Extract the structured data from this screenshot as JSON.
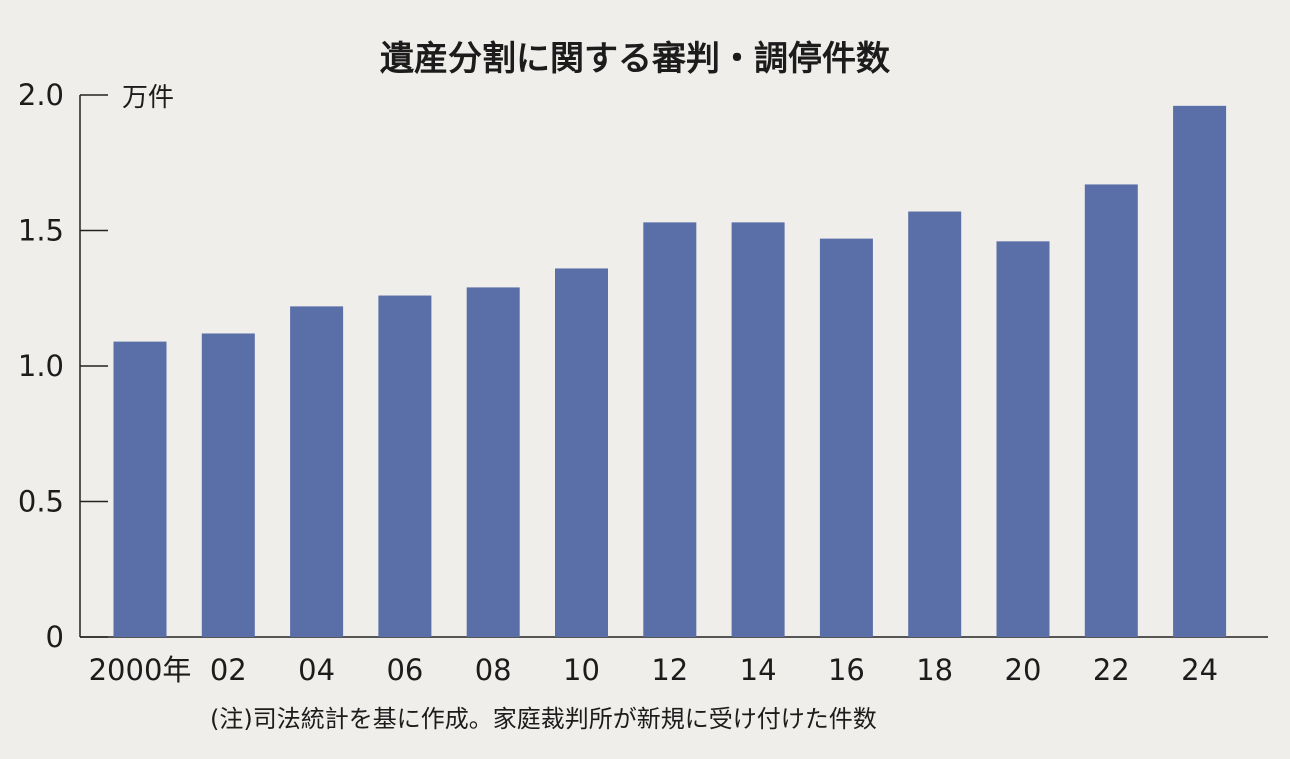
{
  "chart_data": {
    "type": "bar",
    "title": "遺産分割に関する審判・調停件数",
    "unit_label": "万件",
    "note": "(注)司法統計を基に作成。家庭裁判所が新規に受け付けた件数",
    "categories": [
      "2000年",
      "02",
      "04",
      "06",
      "08",
      "10",
      "12",
      "14",
      "16",
      "18",
      "20",
      "22",
      "24"
    ],
    "values": [
      1.09,
      1.12,
      1.22,
      1.26,
      1.29,
      1.36,
      1.53,
      1.53,
      1.47,
      1.57,
      1.46,
      1.67,
      1.96
    ],
    "ylim": [
      0,
      2.0
    ],
    "yticks": [
      0,
      0.5,
      1.0,
      1.5,
      2.0
    ],
    "ytick_labels": [
      "0",
      "0.5",
      "1.0",
      "1.5",
      "2.0"
    ],
    "grid": false,
    "bar_color": "#5a6ea8"
  }
}
